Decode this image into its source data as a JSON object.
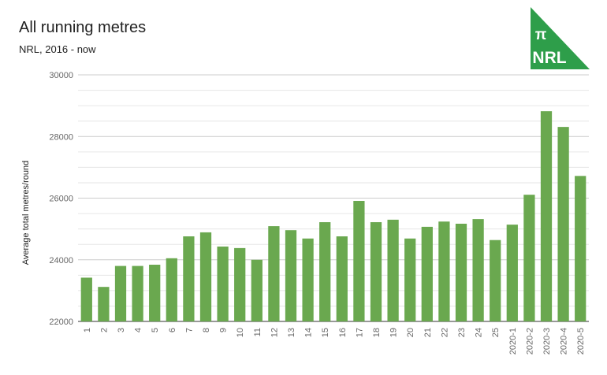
{
  "chart_data": {
    "type": "bar",
    "title": "All running metres",
    "subtitle": "NRL, 2016 - now",
    "xlabel": "",
    "ylabel": "Average total metres/round",
    "ylim": [
      22000,
      30000
    ],
    "yticks": [
      22000,
      24000,
      26000,
      28000,
      30000
    ],
    "grid": true,
    "bar_color": "#6aa84f",
    "categories": [
      "1",
      "2",
      "3",
      "4",
      "5",
      "6",
      "7",
      "8",
      "9",
      "10",
      "11",
      "12",
      "13",
      "14",
      "15",
      "16",
      "17",
      "18",
      "19",
      "20",
      "21",
      "22",
      "23",
      "24",
      "25",
      "2020-1",
      "2020-2",
      "2020-3",
      "2020-4",
      "2020-5"
    ],
    "values": [
      23420,
      23120,
      23800,
      23800,
      23840,
      24050,
      24760,
      24890,
      24430,
      24380,
      24000,
      25090,
      24960,
      24690,
      25220,
      24760,
      25910,
      25220,
      25300,
      24690,
      25070,
      25240,
      25170,
      25320,
      24640,
      25140,
      26110,
      28820,
      28310,
      26720
    ]
  },
  "logo": {
    "symbol": "π",
    "text": "NRL",
    "color": "#2e9e4a"
  }
}
